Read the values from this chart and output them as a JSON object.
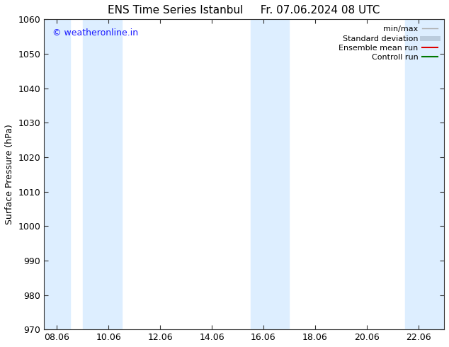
{
  "title_left": "ENS Time Series Istanbul",
  "title_right": "Fr. 07.06.2024 08 UTC",
  "ylabel": "Surface Pressure (hPa)",
  "watermark": "© weatheronline.in",
  "watermark_color": "#1a1aff",
  "ylim": [
    970,
    1060
  ],
  "yticks": [
    970,
    980,
    990,
    1000,
    1010,
    1020,
    1030,
    1040,
    1050,
    1060
  ],
  "xtick_labels": [
    "08.06",
    "10.06",
    "12.06",
    "14.06",
    "16.06",
    "18.06",
    "20.06",
    "22.06"
  ],
  "xtick_positions": [
    0,
    2,
    4,
    6,
    8,
    10,
    12,
    14
  ],
  "xlim": [
    -0.5,
    15.0
  ],
  "shaded_bands": [
    {
      "x_start": -0.5,
      "x_end": 0.5
    },
    {
      "x_start": 1.0,
      "x_end": 2.5
    },
    {
      "x_start": 7.5,
      "x_end": 9.0
    },
    {
      "x_start": 13.5,
      "x_end": 15.0
    }
  ],
  "shade_color": "#ddeeff",
  "background_color": "#ffffff",
  "tick_color": "#333333",
  "spine_color": "#333333",
  "legend_entries": [
    {
      "label": "min/max",
      "color": "#aaaaaa",
      "linewidth": 1.0
    },
    {
      "label": "Standard deviation",
      "color": "#bbccdd",
      "linewidth": 5
    },
    {
      "label": "Ensemble mean run",
      "color": "#dd0000",
      "linewidth": 1.5
    },
    {
      "label": "Controll run",
      "color": "#007700",
      "linewidth": 1.5
    }
  ],
  "title_fontsize": 11,
  "ylabel_fontsize": 9,
  "tick_fontsize": 9,
  "watermark_fontsize": 9,
  "legend_fontsize": 8
}
